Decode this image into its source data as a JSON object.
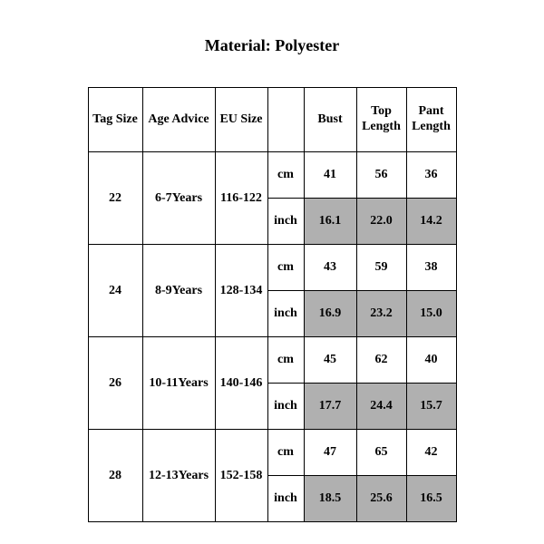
{
  "title": "Material: Polyester",
  "columns": {
    "tag": "Tag Size",
    "age": "Age Advice",
    "eu": "EU Size",
    "unit": "",
    "bust": "Bust",
    "top": "Top Length",
    "pant": "Pant Length"
  },
  "colors": {
    "background": "#ffffff",
    "border": "#000000",
    "text": "#000000",
    "shade": "#b0b0b0"
  },
  "rows": [
    {
      "tag": "22",
      "age": "6-7Years",
      "eu": "116-122",
      "cm": {
        "unit": "cm",
        "bust": "41",
        "top": "56",
        "pant": "36"
      },
      "inch": {
        "unit": "inch",
        "bust": "16.1",
        "top": "22.0",
        "pant": "14.2"
      }
    },
    {
      "tag": "24",
      "age": "8-9Years",
      "eu": "128-134",
      "cm": {
        "unit": "cm",
        "bust": "43",
        "top": "59",
        "pant": "38"
      },
      "inch": {
        "unit": "inch",
        "bust": "16.9",
        "top": "23.2",
        "pant": "15.0"
      }
    },
    {
      "tag": "26",
      "age": "10-11Years",
      "eu": "140-146",
      "cm": {
        "unit": "cm",
        "bust": "45",
        "top": "62",
        "pant": "40"
      },
      "inch": {
        "unit": "inch",
        "bust": "17.7",
        "top": "24.4",
        "pant": "15.7"
      }
    },
    {
      "tag": "28",
      "age": "12-13Years",
      "eu": "152-158",
      "cm": {
        "unit": "cm",
        "bust": "47",
        "top": "65",
        "pant": "42"
      },
      "inch": {
        "unit": "inch",
        "bust": "18.5",
        "top": "25.6",
        "pant": "16.5"
      }
    }
  ]
}
